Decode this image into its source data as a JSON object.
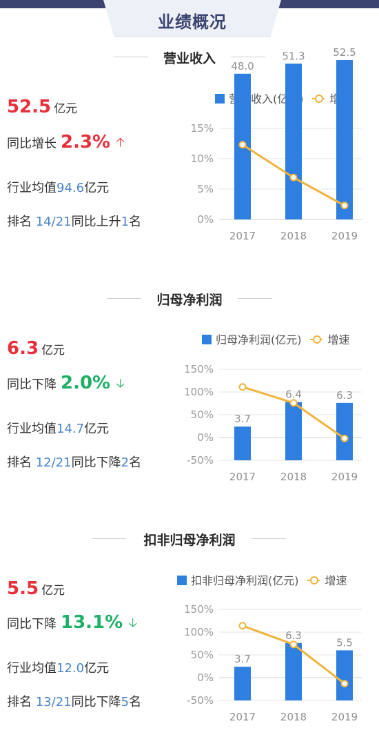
{
  "header": {
    "title": "业绩概况"
  },
  "colors": {
    "bar": "#2f7fe0",
    "line": "#f0b33c",
    "up_red": "#e8303a",
    "down_green": "#1fb067",
    "highlight_blue": "#4a84c9"
  },
  "sections": [
    {
      "title": "营业收入",
      "value": "52.5",
      "unit": "亿元",
      "yoy_label": "同比增长",
      "yoy_value": "2.3%",
      "direction": "up",
      "industry_prefix": "行业均值",
      "industry_value": "94.6",
      "industry_unit": "亿元",
      "rank_prefix": "排名 ",
      "rank_value": "14/21",
      "rank_mid": "同比上升",
      "rank_change": "1",
      "rank_suffix": "名",
      "legend_bar": "营业收入(亿元)",
      "legend_line": "增速"
    },
    {
      "title": "归母净利润",
      "value": "6.3",
      "unit": "亿元",
      "yoy_label": "同比下降",
      "yoy_value": "2.0%",
      "direction": "down",
      "industry_prefix": "行业均值",
      "industry_value": "14.7",
      "industry_unit": "亿元",
      "rank_prefix": "排名 ",
      "rank_value": "12/21",
      "rank_mid": "同比下降",
      "rank_change": "2",
      "rank_suffix": "名",
      "legend_bar": "归母净利润(亿元)",
      "legend_line": "增速"
    },
    {
      "title": "扣非归母净利润",
      "value": "5.5",
      "unit": "亿元",
      "yoy_label": "同比下降",
      "yoy_value": "13.1%",
      "direction": "down",
      "industry_prefix": "行业均值",
      "industry_value": "12.0",
      "industry_unit": "亿元",
      "rank_prefix": "排名 ",
      "rank_value": "13/21",
      "rank_mid": "同比下降",
      "rank_change": "5",
      "rank_suffix": "名",
      "legend_bar": "扣非归母净利润(亿元)",
      "legend_line": "增速"
    }
  ],
  "chart_data": [
    {
      "type": "bar",
      "categories": [
        "2017",
        "2018",
        "2019"
      ],
      "series": [
        {
          "name": "营业收入(亿元)",
          "type": "bar",
          "values": [
            48.0,
            51.3,
            52.5
          ],
          "labels": [
            "48.0",
            "51.3",
            "52.5"
          ]
        },
        {
          "name": "增速",
          "type": "line",
          "values": [
            12.3,
            6.9,
            2.3
          ]
        }
      ],
      "y_ticks": [
        "15%",
        "10%",
        "5%",
        "0%"
      ],
      "ylim": [
        0,
        15
      ]
    },
    {
      "type": "bar",
      "categories": [
        "2017",
        "2018",
        "2019"
      ],
      "series": [
        {
          "name": "归母净利润(亿元)",
          "type": "bar",
          "values": [
            3.7,
            6.4,
            6.3
          ],
          "labels": [
            "3.7",
            "6.4",
            "6.3"
          ]
        },
        {
          "name": "增速",
          "type": "line",
          "values": [
            111,
            76,
            -2
          ]
        }
      ],
      "y_ticks": [
        "150%",
        "100%",
        "50%",
        "0%",
        "-50%"
      ],
      "ylim": [
        -50,
        150
      ]
    },
    {
      "type": "bar",
      "categories": [
        "2017",
        "2018",
        "2019"
      ],
      "series": [
        {
          "name": "扣非归母净利润(亿元)",
          "type": "bar",
          "values": [
            3.7,
            6.3,
            5.5
          ],
          "labels": [
            "3.7",
            "6.3",
            "5.5"
          ]
        },
        {
          "name": "增速",
          "type": "line",
          "values": [
            114,
            73,
            -13
          ]
        }
      ],
      "y_ticks": [
        "150%",
        "100%",
        "50%",
        "0%",
        "-50%"
      ],
      "ylim": [
        -50,
        150
      ]
    }
  ]
}
